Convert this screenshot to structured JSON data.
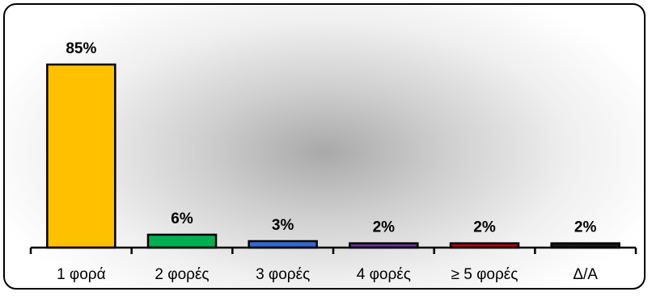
{
  "chart_data": {
    "type": "bar",
    "categories": [
      "1 φορά",
      "2 φορές",
      "3 φορές",
      "4 φορές",
      "≥ 5 φορές",
      "Δ/Α"
    ],
    "values": [
      85,
      6,
      3,
      2,
      2,
      2
    ],
    "data_labels": [
      "85%",
      "6%",
      "3%",
      "2%",
      "2%",
      "2%"
    ],
    "bar_colors": [
      "#FFC000",
      "#00B050",
      "#2E6BD6",
      "#7030A0",
      "#C00000",
      "#1A1A1A"
    ],
    "ylim": [
      0,
      100
    ],
    "grid": false,
    "legend": "none",
    "title": "",
    "xlabel": "",
    "ylabel": ""
  }
}
